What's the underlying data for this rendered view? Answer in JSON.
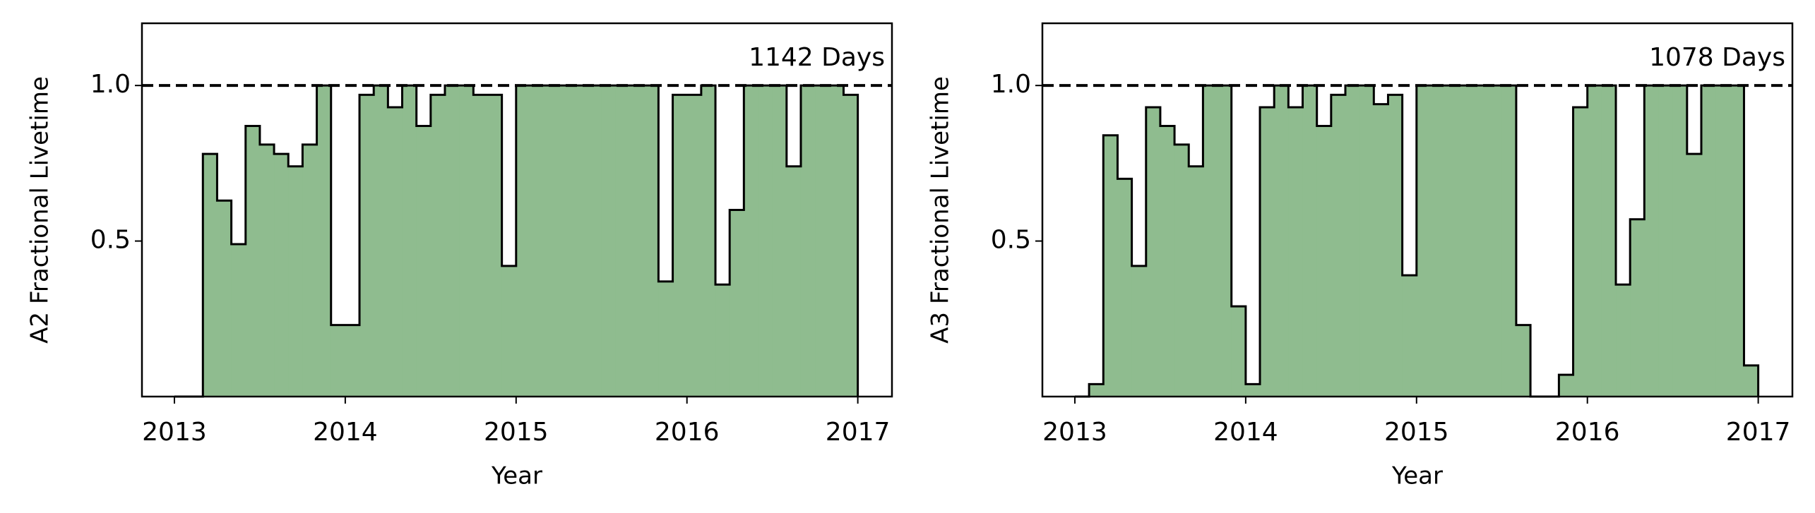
{
  "chart_data": [
    {
      "type": "histogram",
      "xlabel": "Year",
      "ylabel": "A2 Fractional Livetime",
      "annotation": "1142 Days",
      "bins": [
        2013,
        2013.0833,
        2013.1667,
        2013.25,
        2013.3333,
        2013.4167,
        2013.5,
        2013.5833,
        2013.6667,
        2013.75,
        2013.8333,
        2013.9167,
        2014,
        2014.0833,
        2014.1667,
        2014.25,
        2014.3333,
        2014.4167,
        2014.5,
        2014.5833,
        2014.6667,
        2014.75,
        2014.8333,
        2014.9167,
        2015,
        2015.0833,
        2015.1667,
        2015.25,
        2015.3333,
        2015.4167,
        2015.5,
        2015.5833,
        2015.6667,
        2015.75,
        2015.8333,
        2015.9167,
        2016,
        2016.0833,
        2016.1667,
        2016.25,
        2016.3333,
        2016.4167,
        2016.5,
        2016.5833,
        2016.6667,
        2016.75,
        2016.8333,
        2016.9167,
        2017
      ],
      "values": [
        0,
        0,
        0.78,
        0.63,
        0.49,
        0.87,
        0.81,
        0.78,
        0.74,
        0.81,
        1.0,
        0.23,
        0.23,
        0.97,
        1.0,
        0.93,
        1.0,
        0.87,
        0.97,
        1.0,
        1.0,
        0.97,
        0.97,
        0.42,
        1.0,
        1.0,
        1.0,
        1.0,
        1.0,
        1.0,
        1.0,
        1.0,
        1.0,
        1.0,
        0.37,
        0.97,
        0.97,
        1.0,
        0.36,
        0.6,
        1.0,
        1.0,
        1.0,
        0.74,
        1.0,
        1.0,
        1.0,
        0.97
      ],
      "color": "#8fbc8f",
      "hline": 1,
      "xlim": [
        2012.81,
        2017.2
      ],
      "xticks": [
        2013,
        2014,
        2015,
        2016,
        2017
      ],
      "ylim": [
        0,
        1.2
      ],
      "yticks": [
        0.5,
        {
          "value": 1,
          "label": "1.0"
        }
      ]
    },
    {
      "type": "histogram",
      "xlabel": "Year",
      "ylabel": "A3 Fractional Livetime",
      "annotation": "1078 Days",
      "bins": [
        2013,
        2013.0833,
        2013.1667,
        2013.25,
        2013.3333,
        2013.4167,
        2013.5,
        2013.5833,
        2013.6667,
        2013.75,
        2013.8333,
        2013.9167,
        2014,
        2014.0833,
        2014.1667,
        2014.25,
        2014.3333,
        2014.4167,
        2014.5,
        2014.5833,
        2014.6667,
        2014.75,
        2014.8333,
        2014.9167,
        2015,
        2015.0833,
        2015.1667,
        2015.25,
        2015.3333,
        2015.4167,
        2015.5,
        2015.5833,
        2015.6667,
        2015.75,
        2015.8333,
        2015.9167,
        2016,
        2016.0833,
        2016.1667,
        2016.25,
        2016.3333,
        2016.4167,
        2016.5,
        2016.5833,
        2016.6667,
        2016.75,
        2016.8333,
        2016.9167,
        2017
      ],
      "values": [
        0,
        0.04,
        0.84,
        0.7,
        0.42,
        0.93,
        0.87,
        0.81,
        0.74,
        1.0,
        1.0,
        0.29,
        0.04,
        0.93,
        1.0,
        0.93,
        1.0,
        0.87,
        0.97,
        1.0,
        1.0,
        0.94,
        0.97,
        0.39,
        1.0,
        1.0,
        1.0,
        1.0,
        1.0,
        1.0,
        1.0,
        0.23,
        0,
        0,
        0.07,
        0.93,
        1.0,
        1.0,
        0.36,
        0.57,
        1.0,
        1.0,
        1.0,
        0.78,
        1.0,
        1.0,
        1.0,
        0.1
      ],
      "color": "#8fbc8f",
      "hline": 1,
      "xlim": [
        2012.81,
        2017.2
      ],
      "xticks": [
        2013,
        2014,
        2015,
        2016,
        2017
      ],
      "ylim": [
        0,
        1.2
      ],
      "yticks": [
        0.5,
        {
          "value": 1,
          "label": "1.0"
        }
      ]
    }
  ]
}
